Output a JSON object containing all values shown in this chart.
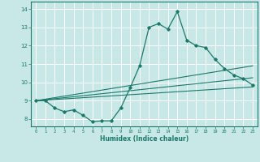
{
  "title": "",
  "xlabel": "Humidex (Indice chaleur)",
  "bg_color": "#c8e8e8",
  "grid_color": "#ffffff",
  "line_color": "#1a7a6a",
  "xlim": [
    -0.5,
    23.5
  ],
  "ylim": [
    7.6,
    14.4
  ],
  "x_ticks": [
    0,
    1,
    2,
    3,
    4,
    5,
    6,
    7,
    8,
    9,
    10,
    11,
    12,
    13,
    14,
    15,
    16,
    17,
    18,
    19,
    20,
    21,
    22,
    23
  ],
  "y_ticks": [
    8,
    9,
    10,
    11,
    12,
    13,
    14
  ],
  "main_x": [
    0,
    1,
    2,
    3,
    4,
    5,
    6,
    7,
    8,
    9,
    10,
    11,
    12,
    13,
    14,
    15,
    16,
    17,
    18,
    19,
    20,
    21,
    22,
    23
  ],
  "main_y": [
    9.0,
    9.0,
    8.6,
    8.4,
    8.5,
    8.2,
    7.85,
    7.9,
    7.9,
    8.6,
    9.7,
    10.9,
    13.0,
    13.2,
    12.9,
    13.85,
    12.3,
    12.0,
    11.9,
    11.25,
    10.75,
    10.4,
    10.2,
    9.85
  ],
  "line1_x": [
    0,
    23
  ],
  "line1_y": [
    9.0,
    9.75
  ],
  "line2_x": [
    0,
    23
  ],
  "line2_y": [
    9.0,
    10.25
  ],
  "line3_x": [
    0,
    23
  ],
  "line3_y": [
    9.0,
    10.9
  ]
}
